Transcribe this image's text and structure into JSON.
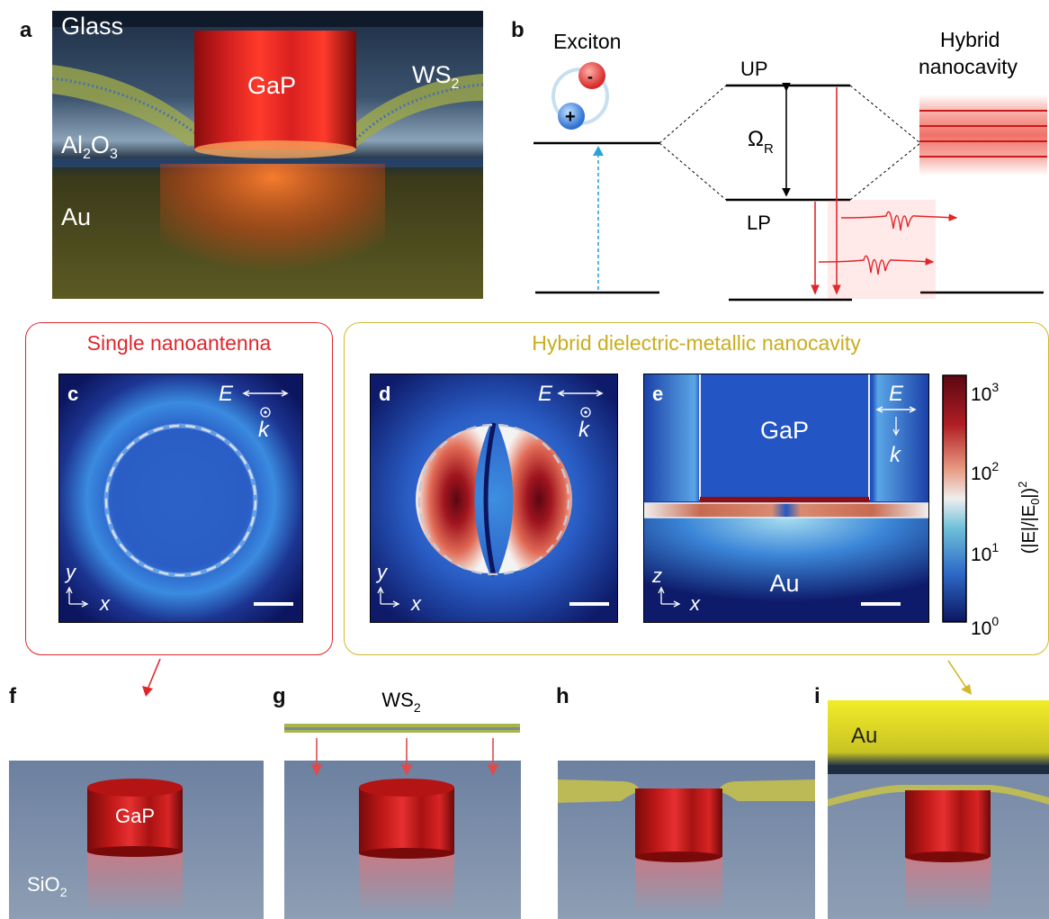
{
  "panels": {
    "a": {
      "label": "a",
      "glass": "Glass",
      "gap": "GaP",
      "ws2": "WS",
      "ws2_sub": "2",
      "al": "Al",
      "al_sub1": "2",
      "al_o": "O",
      "al_sub2": "3",
      "au": "Au"
    },
    "b": {
      "label": "b",
      "exciton": "Exciton",
      "minus": "-",
      "plus": "+",
      "up": "UP",
      "lp": "LP",
      "omega": "Ω",
      "omega_sub": "R",
      "hybrid1": "Hybrid",
      "hybrid2": "nanocavity"
    },
    "c": {
      "label": "c",
      "E": "E",
      "k": "k",
      "y": "y",
      "x": "x"
    },
    "d": {
      "label": "d",
      "E": "E",
      "k": "k",
      "y": "y",
      "x": "x"
    },
    "e": {
      "label": "e",
      "gap": "GaP",
      "au": "Au",
      "E": "E",
      "k": "k",
      "z": "z",
      "x": "x"
    },
    "colorbar": {
      "t3": "10",
      "t3e": "3",
      "t2": "10",
      "t2e": "2",
      "t1": "10",
      "t1e": "1",
      "t0": "10",
      "t0e": "0",
      "axis": "(|E|/|E",
      "axis_sub": "0",
      "axis_end": "|)",
      "axis_sup": "2"
    },
    "f": {
      "label": "f",
      "gap": "GaP",
      "sio2": "SiO",
      "sio2_sub": "2"
    },
    "g": {
      "label": "g",
      "ws2": "WS",
      "ws2_sub": "2"
    },
    "h": {
      "label": "h"
    },
    "i": {
      "label": "i",
      "au": "Au"
    }
  },
  "boxes": {
    "single": "Single nanoantenna",
    "hybrid": "Hybrid dielectric-metallic nanocavity"
  },
  "colors": {
    "red": "#e0262b",
    "yellow": "#d4b82a",
    "field_dark": "#0c1660",
    "gap_red": "#c81a1a"
  }
}
